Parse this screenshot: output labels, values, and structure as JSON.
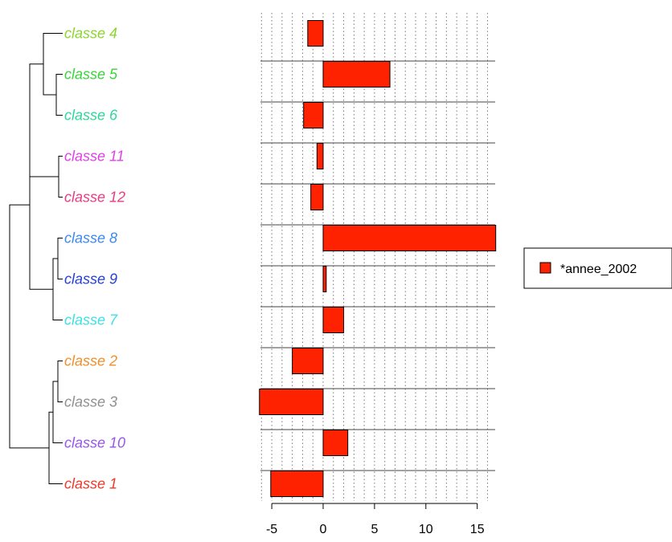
{
  "chart_data": {
    "type": "bar",
    "orientation": "horizontal",
    "categories": [
      "classe 4",
      "classe 5",
      "classe 6",
      "classe 11",
      "classe 12",
      "classe 8",
      "classe 9",
      "classe 7",
      "classe 2",
      "classe 3",
      "classe 10",
      "classe 1"
    ],
    "category_colors": [
      "#8bd62e",
      "#3ad43a",
      "#2fd89a",
      "#e040e8",
      "#e83c83",
      "#3c8af0",
      "#2440d8",
      "#3ee0e8",
      "#f0902a",
      "#909090",
      "#9a55ea",
      "#ee3a2a"
    ],
    "series": [
      {
        "name": "*annee_2002",
        "color": "#ff2200",
        "values": [
          -1.5,
          6.5,
          -1.9,
          -0.6,
          -1.2,
          16.8,
          0.3,
          2.0,
          -3.0,
          -6.2,
          2.4,
          -5.1
        ]
      }
    ],
    "x_ticks": [
      -5,
      0,
      5,
      10,
      15
    ],
    "x_tick_labels": [
      "-5",
      "0",
      "5",
      "10",
      "15"
    ],
    "xlim": [
      -6.2,
      16.8
    ],
    "grid": "vertical dotted",
    "legend": "right",
    "dendrogram": "hierarchical clustering tree on left"
  }
}
